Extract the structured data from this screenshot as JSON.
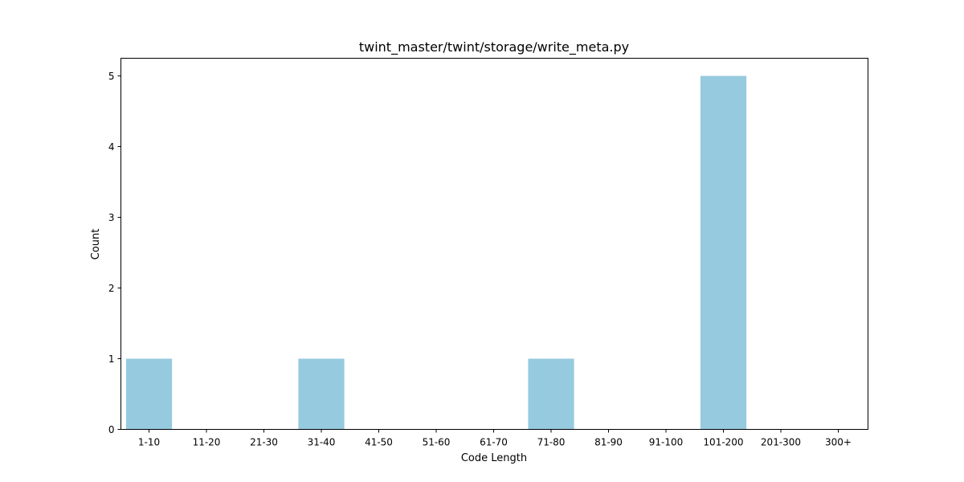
{
  "chart_data": {
    "type": "bar",
    "title": "twint_master/twint/storage/write_meta.py",
    "xlabel": "Code Length",
    "ylabel": "Count",
    "categories": [
      "1-10",
      "11-20",
      "21-30",
      "31-40",
      "41-50",
      "51-60",
      "61-70",
      "71-80",
      "81-90",
      "91-100",
      "101-200",
      "201-300",
      "300+"
    ],
    "values": [
      1,
      0,
      0,
      1,
      0,
      0,
      0,
      1,
      0,
      0,
      5,
      0,
      0
    ],
    "yticks": [
      0,
      1,
      2,
      3,
      4,
      5
    ],
    "ylim": [
      0,
      5.25
    ],
    "grid": false,
    "bar_color": "#96cadf"
  }
}
